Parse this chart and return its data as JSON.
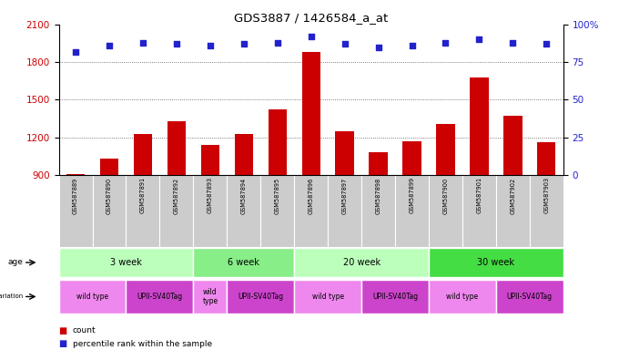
{
  "title": "GDS3887 / 1426584_a_at",
  "samples": [
    "GSM587889",
    "GSM587890",
    "GSM587891",
    "GSM587892",
    "GSM587893",
    "GSM587894",
    "GSM587895",
    "GSM587896",
    "GSM587897",
    "GSM587898",
    "GSM587899",
    "GSM587900",
    "GSM587901",
    "GSM587902",
    "GSM587903"
  ],
  "counts": [
    910,
    1030,
    1230,
    1330,
    1140,
    1230,
    1420,
    1880,
    1250,
    1080,
    1170,
    1310,
    1680,
    1370,
    1165
  ],
  "percentile_ranks": [
    82,
    86,
    88,
    87,
    86,
    87,
    88,
    92,
    87,
    85,
    86,
    88,
    90,
    88,
    87
  ],
  "ylim_left": [
    900,
    2100
  ],
  "ylim_right": [
    0,
    100
  ],
  "yticks_left": [
    900,
    1200,
    1500,
    1800,
    2100
  ],
  "yticks_right": [
    0,
    25,
    50,
    75,
    100
  ],
  "bar_color": "#cc0000",
  "dot_color": "#2222cc",
  "age_groups": [
    {
      "label": "3 week",
      "start": 0,
      "end": 4,
      "color": "#bbffbb"
    },
    {
      "label": "6 week",
      "start": 4,
      "end": 7,
      "color": "#88ee88"
    },
    {
      "label": "20 week",
      "start": 7,
      "end": 11,
      "color": "#bbffbb"
    },
    {
      "label": "30 week",
      "start": 11,
      "end": 15,
      "color": "#44dd44"
    }
  ],
  "genotype_groups": [
    {
      "label": "wild type",
      "start": 0,
      "end": 2,
      "color": "#ee88ee"
    },
    {
      "label": "UPII-SV40Tag",
      "start": 2,
      "end": 4,
      "color": "#cc44cc"
    },
    {
      "label": "wild\ntype",
      "start": 4,
      "end": 5,
      "color": "#ee88ee"
    },
    {
      "label": "UPII-SV40Tag",
      "start": 5,
      "end": 7,
      "color": "#cc44cc"
    },
    {
      "label": "wild type",
      "start": 7,
      "end": 9,
      "color": "#ee88ee"
    },
    {
      "label": "UPII-SV40Tag",
      "start": 9,
      "end": 11,
      "color": "#cc44cc"
    },
    {
      "label": "wild type",
      "start": 11,
      "end": 13,
      "color": "#ee88ee"
    },
    {
      "label": "UPII-SV40Tag",
      "start": 13,
      "end": 15,
      "color": "#cc44cc"
    }
  ],
  "left_axis_color": "#cc0000",
  "right_axis_color": "#2222cc",
  "background_color": "#ffffff",
  "grid_color": "#555555",
  "sample_bg": "#cccccc"
}
